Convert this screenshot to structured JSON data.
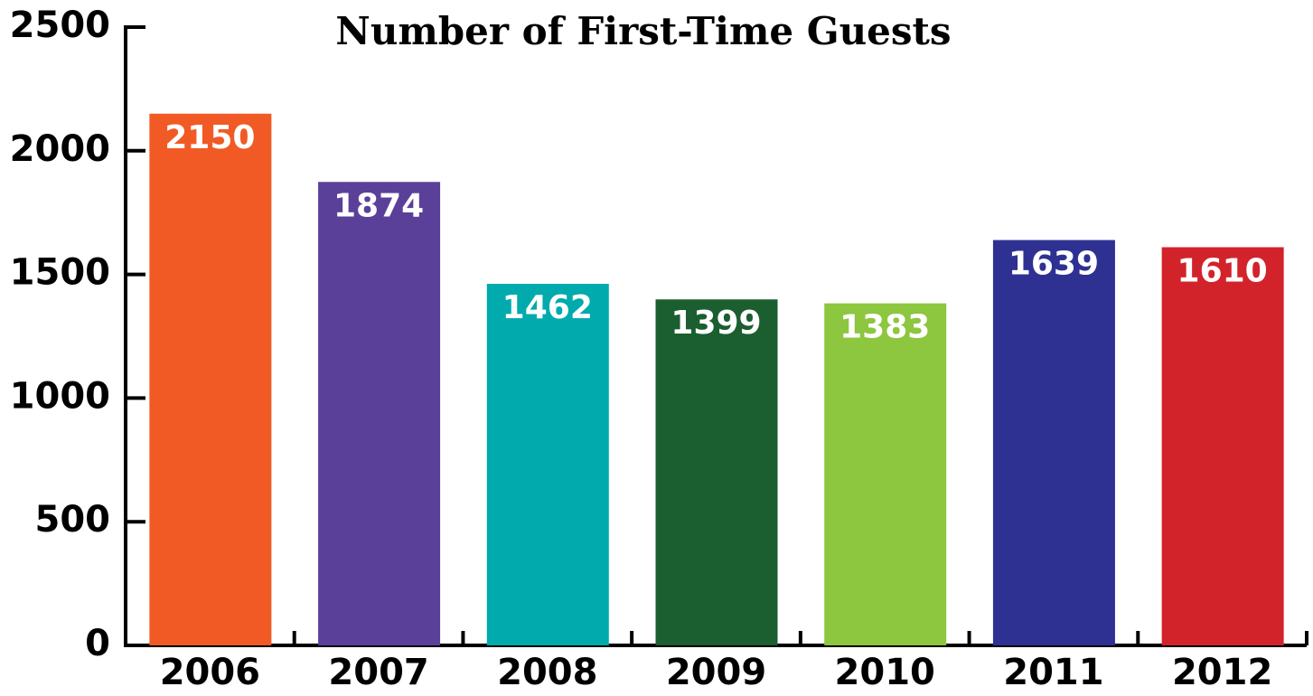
{
  "chart_data": {
    "type": "bar",
    "title": "Number of First-Time Guests",
    "categories": [
      "2006",
      "2007",
      "2008",
      "2009",
      "2010",
      "2011",
      "2012"
    ],
    "values": [
      2150,
      1874,
      1462,
      1399,
      1383,
      1639,
      1610
    ],
    "colors": [
      "#f15a24",
      "#5b4099",
      "#00aaad",
      "#1b5e30",
      "#8dc63f",
      "#2e3192",
      "#d2232a"
    ],
    "ylim": [
      0,
      2500
    ],
    "yticks": [
      0,
      500,
      1000,
      1500,
      2000,
      2500
    ],
    "grid": false
  }
}
